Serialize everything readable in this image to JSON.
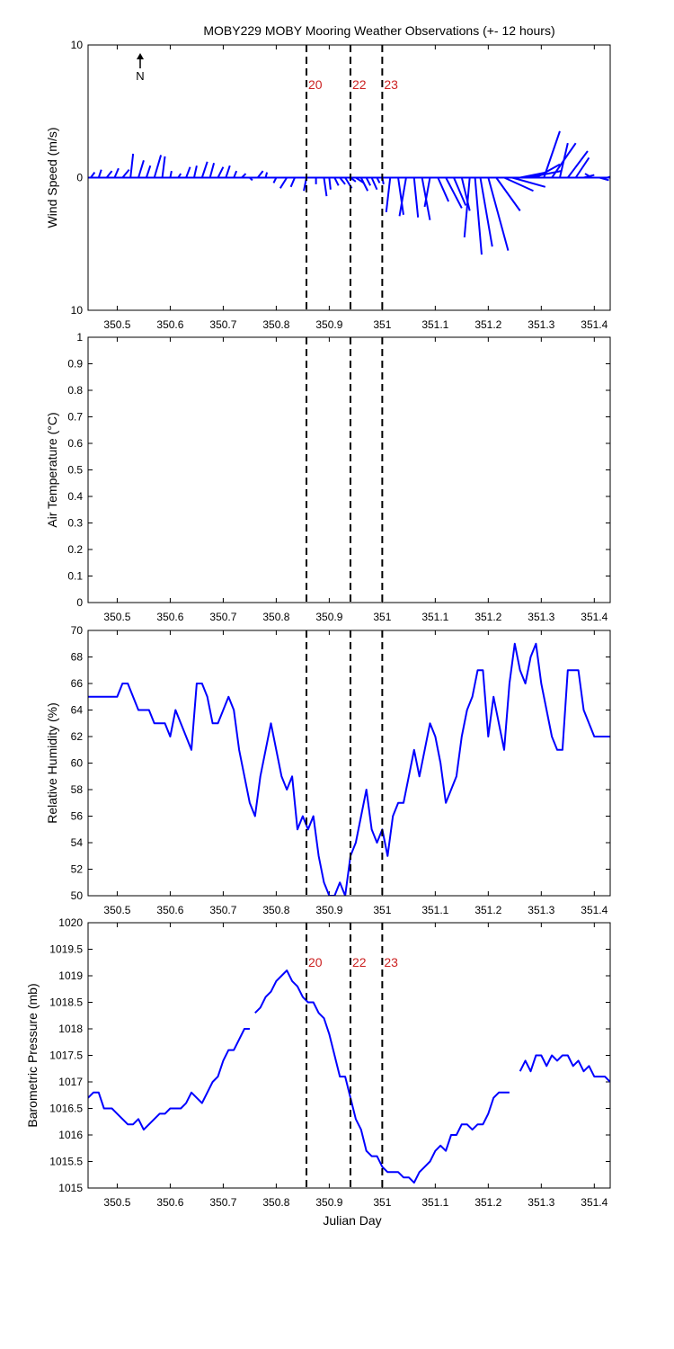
{
  "figure": {
    "title": "MOBY229 MOBY Mooring Weather Observations (+- 12 hours)",
    "xlabel": "Julian Day",
    "north_label": "N",
    "x_ticks": [
      350.5,
      350.6,
      350.7,
      350.8,
      350.9,
      351,
      351.1,
      351.2,
      351.3,
      351.4
    ],
    "x_tick_labels": [
      "350.5",
      "350.6",
      "350.7",
      "350.8",
      "350.9",
      "351",
      "351.1",
      "351.2",
      "351.3",
      "351.4"
    ],
    "xlim": [
      350.445,
      351.43
    ],
    "colors": {
      "data": "#0000ff",
      "event_label": "#cc2222",
      "axis": "#000000"
    }
  },
  "events": [
    {
      "x": 350.857,
      "label": "20"
    },
    {
      "x": 350.94,
      "label": "22"
    },
    {
      "x": 351.0,
      "label": "23"
    }
  ],
  "chart_data": [
    {
      "id": "wind",
      "type": "line",
      "subtype": "wind-vector (stick) plot",
      "ylabel": "Wind Speed (m/s)",
      "ylim": [
        -10,
        10
      ],
      "y_ticks": [
        -10,
        0,
        10
      ],
      "y_tick_labels": [
        "10",
        "0",
        "10"
      ],
      "show_event_labels": true,
      "x": [
        350.45,
        350.465,
        350.48,
        350.495,
        350.51,
        350.525,
        350.54,
        350.555,
        350.57,
        350.585,
        350.6,
        350.615,
        350.63,
        350.645,
        350.66,
        350.675,
        350.69,
        350.705,
        350.72,
        350.735,
        350.75,
        350.765,
        350.78,
        350.8,
        350.82,
        350.835,
        350.857,
        350.875,
        350.89,
        350.9,
        350.91,
        350.92,
        350.93,
        350.94,
        350.95,
        350.96,
        350.97,
        350.98,
        350.99,
        351.0,
        351.015,
        351.03,
        351.045,
        351.06,
        351.075,
        351.09,
        351.105,
        351.12,
        351.135,
        351.15,
        351.165,
        351.175,
        351.185,
        351.2,
        351.215,
        351.23,
        351.245,
        351.26,
        351.275,
        351.29,
        351.305,
        351.32,
        351.335,
        351.35,
        351.365,
        351.38,
        351.395,
        351.41,
        351.425
      ],
      "u": [
        0.3,
        0.2,
        0.4,
        0.3,
        0.5,
        0.2,
        0.4,
        0.3,
        0.5,
        0.2,
        0.1,
        0.2,
        0.3,
        0.2,
        0.4,
        0.3,
        0.4,
        0.3,
        0.2,
        0.3,
        0.2,
        0.4,
        0.1,
        -0.2,
        -0.5,
        -0.3,
        -0.2,
        0.0,
        0.2,
        0.1,
        0.3,
        0.4,
        0.5,
        0.4,
        0.6,
        0.5,
        0.3,
        0.4,
        0.2,
        0.1,
        -0.3,
        0.4,
        -0.5,
        0.3,
        0.6,
        -0.4,
        0.8,
        1.2,
        0.9,
        0.6,
        -0.4,
        0.5,
        0.9,
        1.5,
        1.8,
        2.2,
        2.5,
        2.0,
        2.5,
        1.8,
        1.2,
        1.8,
        0.6,
        1.5,
        1.0,
        0.8,
        -0.5,
        0.7,
        0.3
      ],
      "v": [
        0.4,
        0.6,
        0.5,
        0.7,
        0.6,
        1.8,
        1.3,
        0.9,
        1.7,
        1.6,
        0.5,
        0.3,
        0.8,
        0.9,
        1.2,
        1.1,
        0.8,
        0.9,
        0.5,
        0.3,
        -0.2,
        0.5,
        0.4,
        -0.4,
        -0.8,
        -0.7,
        -1.0,
        -0.5,
        -1.4,
        -0.9,
        -0.6,
        -0.5,
        -0.8,
        -0.3,
        -0.4,
        -1.0,
        -0.6,
        -0.9,
        -0.4,
        -0.5,
        -2.6,
        -2.8,
        -2.9,
        -3.0,
        -3.2,
        -2.2,
        -1.8,
        -2.3,
        -2.1,
        -2.5,
        -4.5,
        -5.8,
        -5.2,
        -5.5,
        -2.5,
        -1.0,
        -0.7,
        0.4,
        0.5,
        1.0,
        3.5,
        2.6,
        2.6,
        2.0,
        1.5,
        0.2,
        0.3,
        -0.2,
        0.1
      ]
    },
    {
      "id": "airtemp",
      "type": "line",
      "ylabel": "Air Temperature (°C)",
      "ylim": [
        0,
        1
      ],
      "y_ticks": [
        0,
        0.1,
        0.2,
        0.3,
        0.4,
        0.5,
        0.6,
        0.7,
        0.8,
        0.9,
        1
      ],
      "y_tick_labels": [
        "0",
        "0.1",
        "0.2",
        "0.3",
        "0.4",
        "0.5",
        "0.6",
        "0.7",
        "0.8",
        "0.9",
        "1"
      ],
      "show_event_labels": false,
      "x": [],
      "y": []
    },
    {
      "id": "rh",
      "type": "line",
      "ylabel": "Relative Humidity (%)",
      "ylim": [
        50,
        70
      ],
      "y_ticks": [
        50,
        52,
        54,
        56,
        58,
        60,
        62,
        64,
        66,
        68,
        70
      ],
      "y_tick_labels": [
        "50",
        "52",
        "54",
        "56",
        "58",
        "60",
        "62",
        "64",
        "66",
        "68",
        "70"
      ],
      "show_event_labels": false,
      "x": [
        350.445,
        350.46,
        350.475,
        350.49,
        350.5,
        350.51,
        350.52,
        350.53,
        350.54,
        350.55,
        350.56,
        350.57,
        350.58,
        350.59,
        350.6,
        350.61,
        350.62,
        350.63,
        350.64,
        350.65,
        350.66,
        350.67,
        350.68,
        350.69,
        350.7,
        350.71,
        350.72,
        350.73,
        350.74,
        350.75,
        350.76,
        350.77,
        350.78,
        350.79,
        350.8,
        350.81,
        350.82,
        350.83,
        350.84,
        350.85,
        350.86,
        350.87,
        350.88,
        350.89,
        350.9,
        350.91,
        350.92,
        350.93,
        350.94,
        350.95,
        350.96,
        350.97,
        350.98,
        350.99,
        351.0,
        351.01,
        351.02,
        351.03,
        351.04,
        351.05,
        351.06,
        351.07,
        351.08,
        351.09,
        351.1,
        351.11,
        351.12,
        351.13,
        351.14,
        351.15,
        351.16,
        351.17,
        351.18,
        351.19,
        351.2,
        351.21,
        351.22,
        351.23,
        351.24,
        351.25,
        351.26,
        351.27,
        351.28,
        351.29,
        351.3,
        351.31,
        351.32,
        351.33,
        351.34,
        351.35,
        351.36,
        351.37,
        351.38,
        351.39,
        351.4,
        351.41,
        351.42,
        351.43
      ],
      "y": [
        65,
        65,
        65,
        65,
        65,
        66,
        66,
        65,
        64,
        64,
        64,
        63,
        63,
        63,
        62,
        64,
        63,
        62,
        61,
        66,
        66,
        65,
        63,
        63,
        64,
        65,
        64,
        61,
        59,
        57,
        56,
        59,
        61,
        63,
        61,
        59,
        58,
        59,
        55,
        56,
        55,
        56,
        53,
        51,
        50,
        50,
        51,
        50,
        53,
        54,
        56,
        58,
        55,
        54,
        55,
        53,
        56,
        57,
        57,
        59,
        61,
        59,
        61,
        63,
        62,
        60,
        57,
        58,
        59,
        62,
        64,
        65,
        67,
        67,
        62,
        65,
        63,
        61,
        66,
        69,
        67,
        66,
        68,
        69,
        66,
        64,
        62,
        61,
        61,
        67,
        67,
        67,
        64,
        63,
        62,
        62,
        62,
        62
      ]
    },
    {
      "id": "pressure",
      "type": "line",
      "ylabel": "Barometric Pressure (mb)",
      "ylim": [
        1015,
        1020
      ],
      "y_ticks": [
        1015,
        1015.5,
        1016,
        1016.5,
        1017,
        1017.5,
        1018,
        1018.5,
        1019,
        1019.5,
        1020
      ],
      "y_tick_labels": [
        "1015",
        "1015.5",
        "1016",
        "1016.5",
        "1017",
        "1017.5",
        "1018",
        "1018.5",
        "1019",
        "1019.5",
        "1020"
      ],
      "show_event_labels": true,
      "segments": [
        {
          "x": [
            350.445,
            350.455,
            350.465,
            350.475,
            350.49,
            350.5,
            350.51,
            350.52,
            350.53,
            350.54,
            350.55,
            350.56,
            350.57,
            350.58,
            350.59,
            350.6,
            350.61,
            350.62,
            350.63,
            350.64,
            350.65,
            350.66,
            350.67,
            350.68,
            350.69,
            350.7,
            350.71,
            350.72,
            350.73,
            350.74,
            350.75
          ],
          "y": [
            1016.7,
            1016.8,
            1016.8,
            1016.5,
            1016.5,
            1016.4,
            1016.3,
            1016.2,
            1016.2,
            1016.3,
            1016.1,
            1016.2,
            1016.3,
            1016.4,
            1016.4,
            1016.5,
            1016.5,
            1016.5,
            1016.6,
            1016.8,
            1016.7,
            1016.6,
            1016.8,
            1017.0,
            1017.1,
            1017.4,
            1017.6,
            1017.6,
            1017.8,
            1018.0,
            1018.0
          ]
        },
        {
          "x": [
            350.76,
            350.77,
            350.78,
            350.79,
            350.8,
            350.81,
            350.82,
            350.83,
            350.84,
            350.85,
            350.86,
            350.87,
            350.88,
            350.89,
            350.9,
            350.91,
            350.92,
            350.93,
            350.94,
            350.95,
            350.96,
            350.97,
            350.98,
            350.99,
            351.0,
            351.01,
            351.02,
            351.03,
            351.04,
            351.05,
            351.06,
            351.07,
            351.08,
            351.09,
            351.1,
            351.11,
            351.12,
            351.13,
            351.14,
            351.15,
            351.16,
            351.17,
            351.18,
            351.19,
            351.2,
            351.21,
            351.22,
            351.23,
            351.24
          ],
          "y": [
            1018.3,
            1018.4,
            1018.6,
            1018.7,
            1018.9,
            1019.0,
            1019.1,
            1018.9,
            1018.8,
            1018.6,
            1018.5,
            1018.5,
            1018.3,
            1018.2,
            1017.9,
            1017.5,
            1017.1,
            1017.1,
            1016.7,
            1016.3,
            1016.1,
            1015.7,
            1015.6,
            1015.6,
            1015.4,
            1015.3,
            1015.3,
            1015.3,
            1015.2,
            1015.2,
            1015.1,
            1015.3,
            1015.4,
            1015.5,
            1015.7,
            1015.8,
            1015.7,
            1016.0,
            1016.0,
            1016.2,
            1016.2,
            1016.1,
            1016.2,
            1016.2,
            1016.4,
            1016.7,
            1016.8,
            1016.8,
            1016.8
          ]
        },
        {
          "x": [
            351.26,
            351.27,
            351.28,
            351.29,
            351.3,
            351.31,
            351.32,
            351.33,
            351.34,
            351.35,
            351.36,
            351.37,
            351.38,
            351.39,
            351.4,
            351.41,
            351.42,
            351.43
          ],
          "y": [
            1017.2,
            1017.4,
            1017.2,
            1017.5,
            1017.5,
            1017.3,
            1017.5,
            1017.4,
            1017.5,
            1017.5,
            1017.3,
            1017.4,
            1017.2,
            1017.3,
            1017.1,
            1017.1,
            1017.1,
            1017.0
          ]
        }
      ]
    }
  ]
}
